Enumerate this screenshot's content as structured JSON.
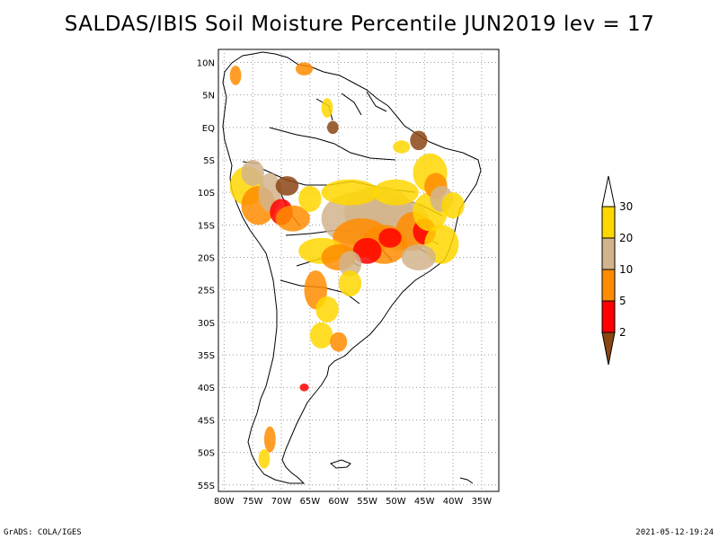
{
  "title": "SALDAS/IBIS Soil Moisture Percentile JUN2019 lev = 17",
  "footer": {
    "left": "GrADS: COLA/IGES",
    "right": "2021-05-12-19:24"
  },
  "map": {
    "lon_range": [
      -81,
      -32
    ],
    "lat_range": [
      -56,
      12
    ],
    "lat_ticks": [
      "10N",
      "5N",
      "EQ",
      "5S",
      "10S",
      "15S",
      "20S",
      "25S",
      "30S",
      "35S",
      "40S",
      "45S",
      "50S",
      "55S"
    ],
    "lon_ticks": [
      "80W",
      "75W",
      "70W",
      "65W",
      "60W",
      "55W",
      "50W",
      "45W",
      "40W",
      "35W"
    ],
    "grid": "dotted"
  },
  "legend": {
    "labels": [
      "2",
      "5",
      "10",
      "20",
      "30"
    ],
    "colors": {
      "below_2": "#8b4513",
      "2_5": "#ff0000",
      "5_10": "#ff8c00",
      "10_20": "#d2b48c",
      "20_30": "#ffd700",
      "above_30": "#ffffff"
    }
  }
}
